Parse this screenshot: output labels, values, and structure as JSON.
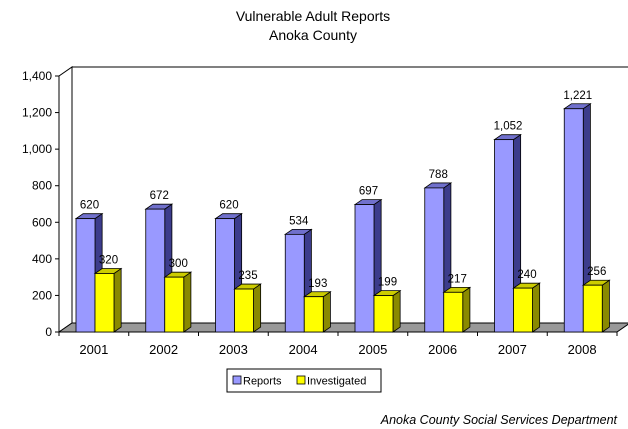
{
  "chart_data": {
    "type": "bar",
    "title": "Vulnerable Adult Reports",
    "subtitle": "Anoka County",
    "xlabel": "",
    "ylabel": "",
    "categories": [
      "2001",
      "2002",
      "2003",
      "2004",
      "2005",
      "2006",
      "2007",
      "2008"
    ],
    "series": [
      {
        "name": "Reports",
        "values": [
          620,
          672,
          620,
          534,
          697,
          788,
          1052,
          1221
        ],
        "value_labels": [
          "620",
          "672",
          "620",
          "534",
          "697",
          "788",
          "1,052",
          "1,221"
        ]
      },
      {
        "name": "Investigated",
        "values": [
          320,
          300,
          235,
          193,
          199,
          217,
          240,
          256
        ],
        "value_labels": [
          "320",
          "300",
          "235",
          "193",
          "199",
          "217",
          "240",
          "256"
        ]
      }
    ],
    "ylim": [
      0,
      1400
    ],
    "y_ticks": [
      "0",
      "200",
      "400",
      "600",
      "800",
      "1,000",
      "1,200",
      "1,400"
    ],
    "grid": false,
    "style": "3d-bar",
    "legend_position": "bottom",
    "source": "Anoka County Social Services Department",
    "colors": {
      "reports_front": "#9999ff",
      "reports_top": "#7070cc",
      "reports_side": "#3c3c8c",
      "investigated_front": "#ffff00",
      "investigated_top": "#cccc00",
      "investigated_side": "#8a8a00",
      "floor": "#999999",
      "wall": "#ffffff"
    }
  }
}
